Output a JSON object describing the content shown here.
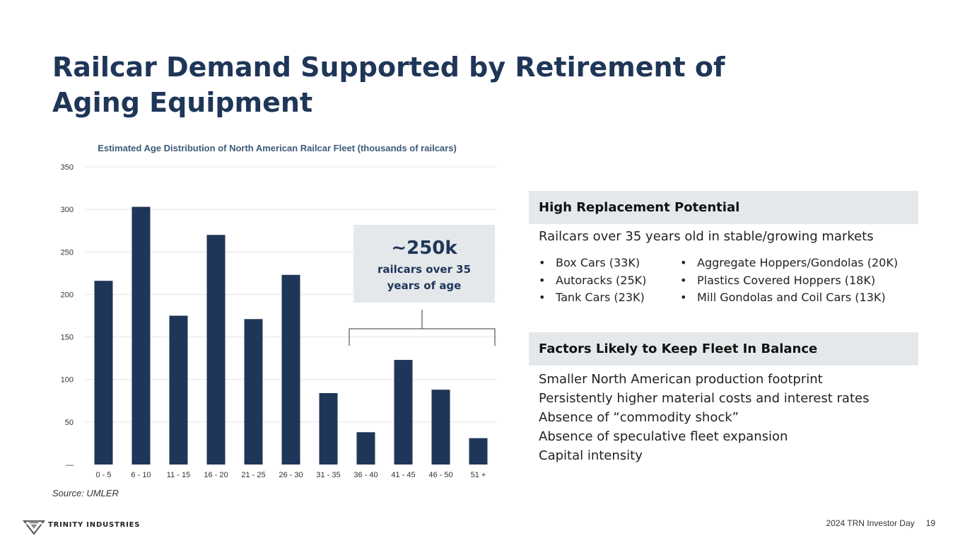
{
  "slide": {
    "title": "Railcar Demand Supported by Retirement of Aging Equipment",
    "source": "Source: UMLER",
    "footer_event": "2024 TRN Investor Day",
    "page_number": "19",
    "logo_text": "TRINITY INDUSTRIES"
  },
  "callout": {
    "value": "~250k",
    "label": "railcars over 35 years of age"
  },
  "high_replacement": {
    "header": "High Replacement Potential",
    "subtitle": "Railcars over 35 years old in stable/growing markets",
    "left_items": [
      "Box Cars (33K)",
      "Autoracks (25K)",
      "Tank Cars (23K)"
    ],
    "right_items": [
      "Aggregate Hoppers/Gondolas (20K)",
      "Plastics Covered Hoppers (18K)",
      "Mill Gondolas and Coil Cars (13K)"
    ]
  },
  "factors": {
    "header": "Factors Likely to Keep Fleet In Balance",
    "items": [
      "Smaller North American production footprint",
      "Persistently higher material costs and interest rates",
      "Absence of “commodity shock”",
      "Absence of speculative fleet expansion",
      "Capital intensity"
    ]
  },
  "colors": {
    "bar": "#1f3658",
    "title": "#1f3658",
    "panel": "#e4e8eb"
  },
  "chart_data": {
    "type": "bar",
    "title": "Estimated Age Distribution of North American Railcar Fleet (thousands of railcars)",
    "categories": [
      "0 - 5",
      "6 - 10",
      "11 - 15",
      "16 - 20",
      "21 - 25",
      "26 - 30",
      "31 - 35",
      "36 - 40",
      "41 - 45",
      "46 - 50",
      "51 +"
    ],
    "values": [
      216,
      303,
      175,
      270,
      171,
      223,
      84,
      38,
      123,
      88,
      31
    ],
    "y_ticks": [
      "—",
      "50",
      "100",
      "150",
      "200",
      "250",
      "300",
      "350"
    ],
    "ylim": [
      0,
      350
    ],
    "grid": true,
    "bracket_range": [
      "36 - 40",
      "51 +"
    ]
  }
}
